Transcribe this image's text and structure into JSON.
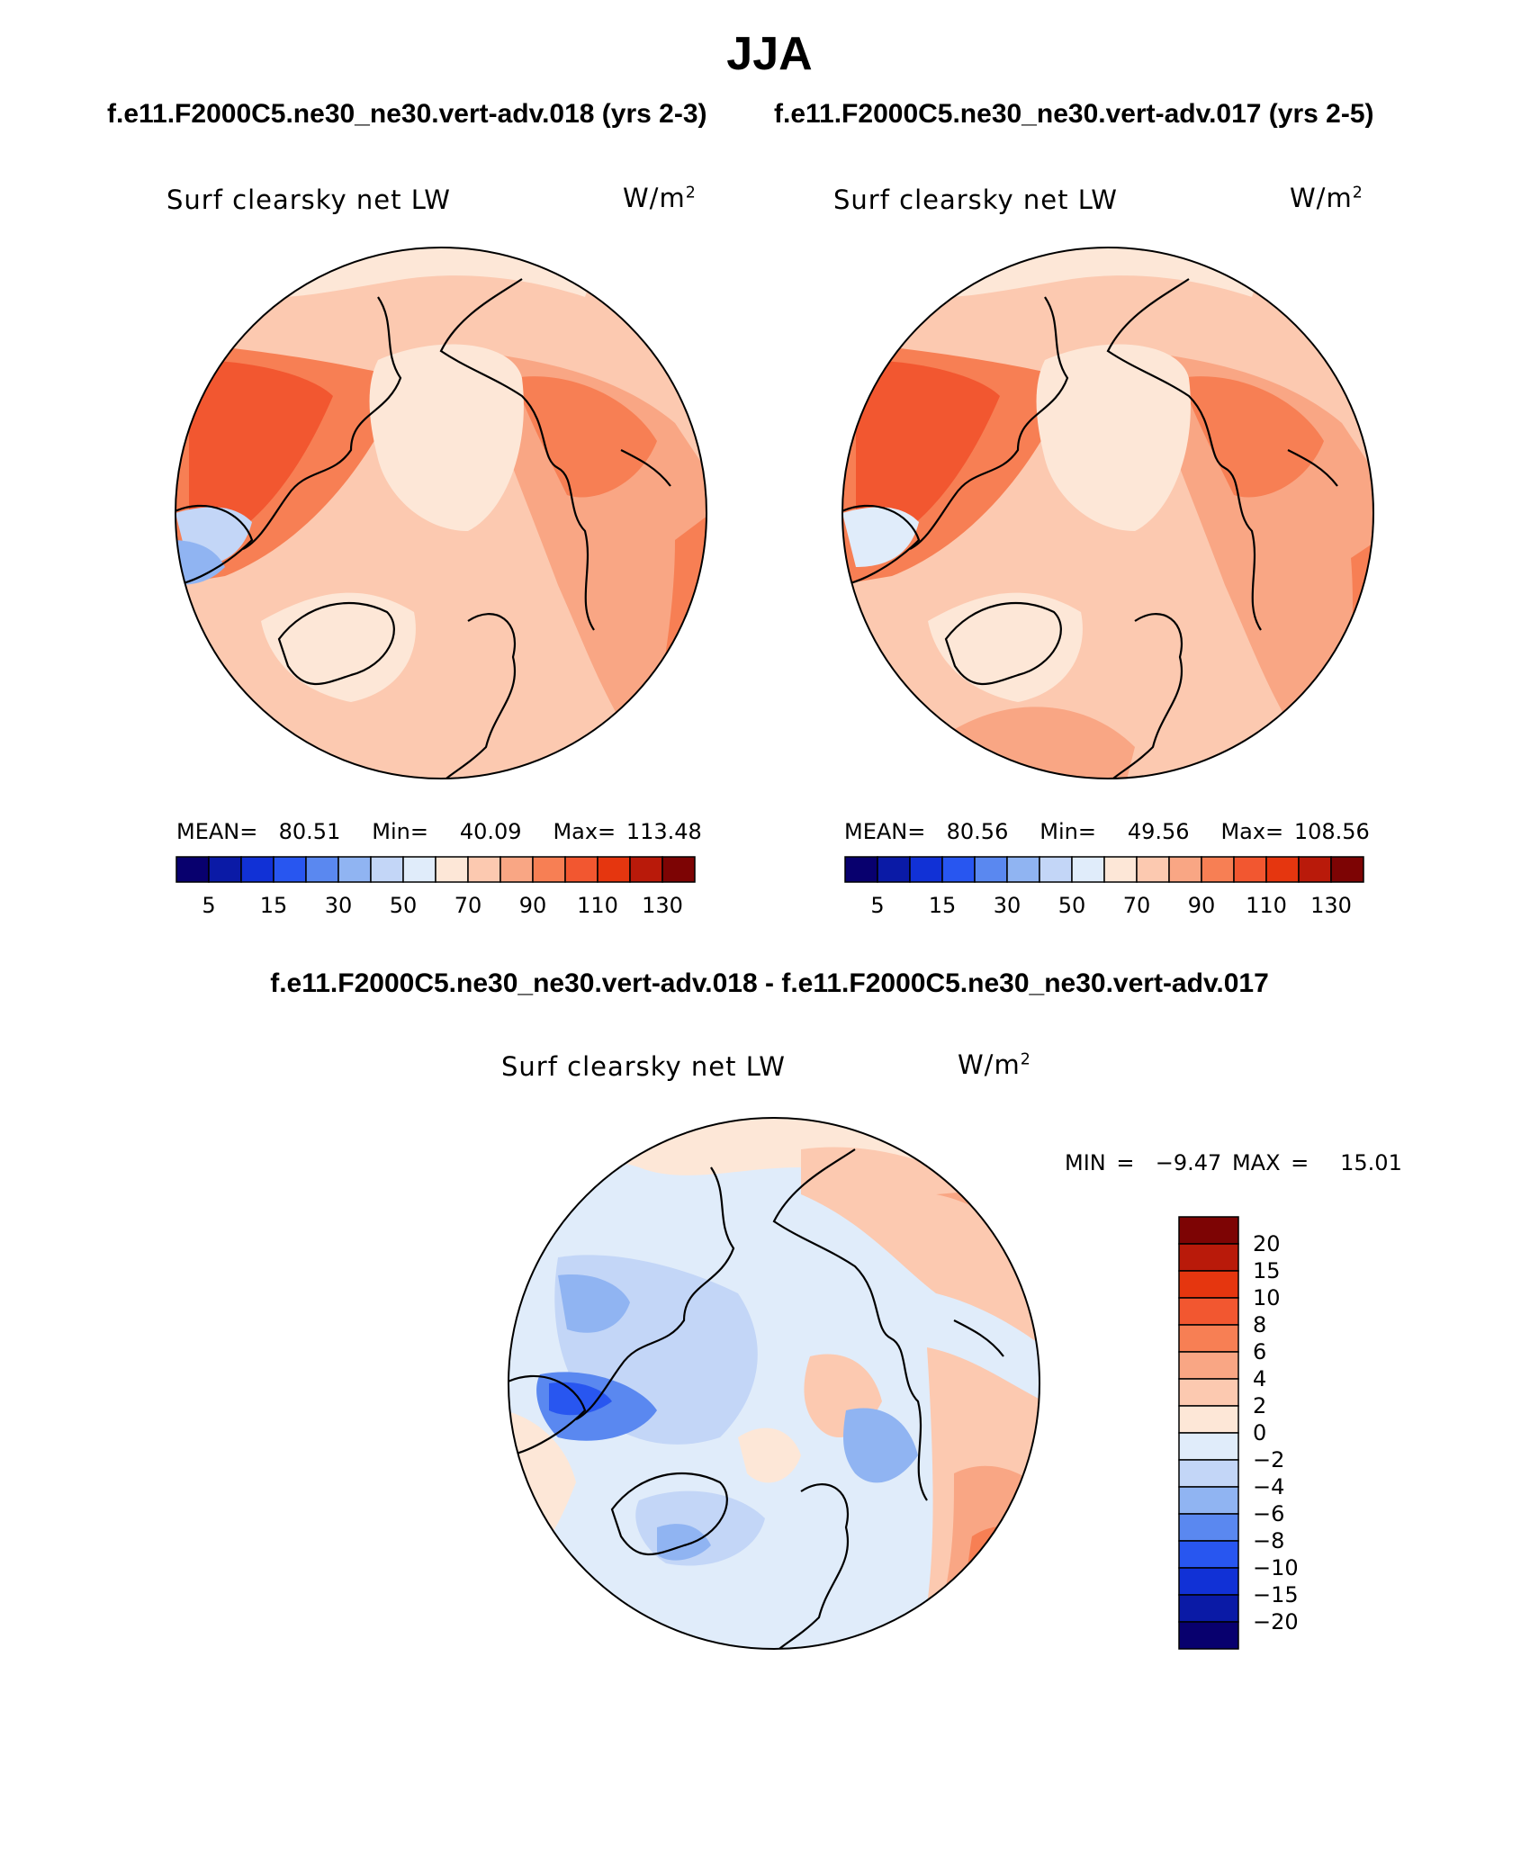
{
  "season": "JJA",
  "case_a": "f.e11.F2000C5.ne30_ne30.vert-adv.018 (yrs 2-3)",
  "case_b": "f.e11.F2000C5.ne30_ne30.vert-adv.017 (yrs 2-5)",
  "difference_title": "f.e11.F2000C5.ne30_ne30.vert-adv.018 - f.e11.F2000C5.ne30_ne30.vert-adv.017",
  "panels": [
    {
      "variable": "Surf clearsky net LW",
      "units_base": "W/m",
      "units_exp": "2",
      "mean_label": "MEAN=",
      "mean": "80.51",
      "min_label": "Min=",
      "min": "40.09",
      "max_label": "Max=",
      "max": "113.48"
    },
    {
      "variable": "Surf clearsky net LW",
      "units_base": "W/m",
      "units_exp": "2",
      "mean_label": "MEAN=",
      "mean": "80.56",
      "min_label": "Min=",
      "min": "49.56",
      "max_label": "Max=",
      "max": "108.56"
    }
  ],
  "diff_panel": {
    "variable": "Surf clearsky net LW",
    "units_base": "W/m",
    "units_exp": "2",
    "min_label": "MIN =",
    "min": "−9.47",
    "max_label": "MAX =",
    "max": "15.01"
  },
  "field_colorbar": {
    "colors": [
      "#08006e",
      "#0a1aa6",
      "#1131d6",
      "#2856f0",
      "#5a88f0",
      "#90b4f2",
      "#c3d6f7",
      "#e0ecfa",
      "#fde7d7",
      "#fcc9b0",
      "#f9a684",
      "#f77f54",
      "#f25730",
      "#e5360f",
      "#b91a0a",
      "#7d0404"
    ],
    "labels": [
      "5",
      "15",
      "30",
      "50",
      "70",
      "90",
      "110",
      "130"
    ]
  },
  "diff_colorbar": {
    "colors": [
      "#7d0404",
      "#b91a0a",
      "#e5360f",
      "#f25730",
      "#f77f54",
      "#f9a684",
      "#fcc9b0",
      "#fde7d7",
      "#e0ecfa",
      "#c3d6f7",
      "#90b4f2",
      "#5a88f0",
      "#2856f0",
      "#1131d6",
      "#0a1aa6",
      "#08006e"
    ],
    "labels": [
      "20",
      "15",
      "10",
      "8",
      "6",
      "4",
      "2",
      "0",
      "−2",
      "−4",
      "−6",
      "−8",
      "−10",
      "−15",
      "−20"
    ]
  }
}
